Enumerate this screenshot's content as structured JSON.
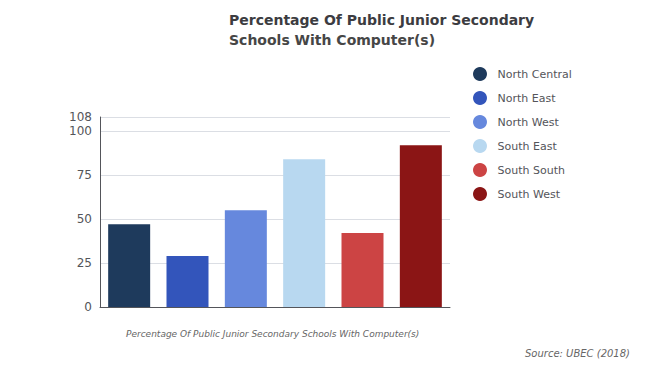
{
  "chart_data": {
    "type": "bar",
    "title": "Percentage Of Public Junior Secondary",
    "subtitle": "Schools With Computer(s)",
    "xlabel": "Percentage Of Public Junior Secondary Schools With Computer(s)",
    "annotations": [
      "Source: UBEC (2018)"
    ],
    "categories": [
      "North Central",
      "North East",
      "North West",
      "South East",
      "South South",
      "South West"
    ],
    "values": [
      47,
      29,
      55,
      84,
      42,
      92
    ],
    "colors": [
      "#1e3a5c",
      "#3355bb",
      "#6688dd",
      "#b8d8f0",
      "#cc4444",
      "#8b1515"
    ],
    "ylim": [
      0,
      108
    ],
    "yticks": [
      0,
      25,
      50,
      75,
      100
    ],
    "grid": true,
    "legend": "right",
    "tick_labels": "y"
  }
}
